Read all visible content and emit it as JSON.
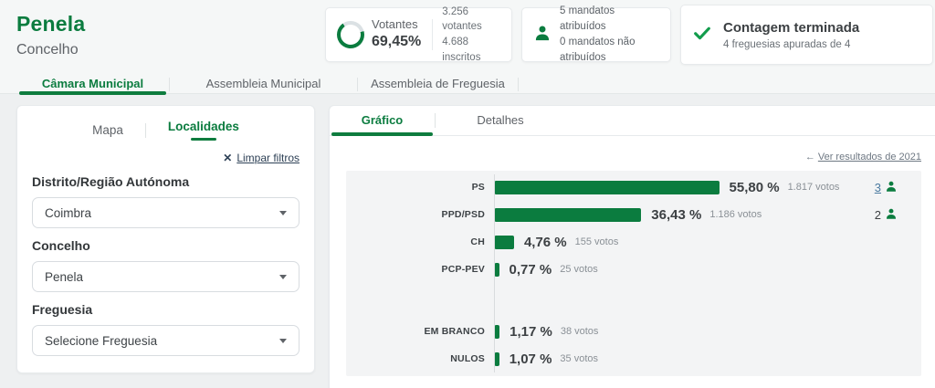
{
  "header": {
    "title": "Penela",
    "subtitle": "Concelho"
  },
  "summary_cards": {
    "votantes": {
      "label": "Votantes",
      "percent": "69,45%",
      "percent_value": 69.45,
      "line1": "3.256 votantes",
      "line2": "4.688 inscritos"
    },
    "mandatos": {
      "line1": "5 mandatos atribuídos",
      "line2": "0 mandatos não atribuídos"
    },
    "contagem": {
      "title": "Contagem terminada",
      "subtitle": "4 freguesias apuradas de 4"
    }
  },
  "main_tabs": [
    {
      "label": "Câmara Municipal",
      "active": true
    },
    {
      "label": "Assembleia Municipal",
      "active": false
    },
    {
      "label": "Assembleia de Freguesia",
      "active": false
    }
  ],
  "left_panel": {
    "tabs": [
      {
        "label": "Mapa",
        "active": false
      },
      {
        "label": "Localidades",
        "active": true
      }
    ],
    "clear_filters": "Limpar filtros",
    "filters": [
      {
        "label": "Distrito/Região Autónoma",
        "value": "Coimbra"
      },
      {
        "label": "Concelho",
        "value": "Penela"
      },
      {
        "label": "Freguesia",
        "value": "Selecione Freguesia"
      }
    ]
  },
  "results_panel": {
    "tabs": [
      {
        "label": "Gráfico",
        "active": true
      },
      {
        "label": "Detalhes",
        "active": false
      }
    ],
    "link_2021": "Ver resultados de 2021"
  },
  "chart_data": {
    "type": "bar",
    "orientation": "horizontal",
    "value_unit": "percent of votes",
    "x_max_implied": 60,
    "grid": false,
    "bar_color": "#0b7c3f",
    "rows": [
      {
        "party": "PS",
        "percent": "55,80 %",
        "percent_value": 55.8,
        "votes": "1.817 votos",
        "votes_value": 1817,
        "mandates": "3",
        "mandates_is_link": true
      },
      {
        "party": "PPD/PSD",
        "percent": "36,43 %",
        "percent_value": 36.43,
        "votes": "1.186 votos",
        "votes_value": 1186,
        "mandates": "2",
        "mandates_is_link": false
      },
      {
        "party": "CH",
        "percent": "4,76 %",
        "percent_value": 4.76,
        "votes": "155 votos",
        "votes_value": 155
      },
      {
        "party": "PCP-PEV",
        "percent": "0,77 %",
        "percent_value": 0.77,
        "votes": "25 votos",
        "votes_value": 25
      },
      {
        "party": "EM BRANCO",
        "percent": "1,17 %",
        "percent_value": 1.17,
        "votes": "38 votos",
        "votes_value": 38,
        "group": "other"
      },
      {
        "party": "NULOS",
        "percent": "1,07 %",
        "percent_value": 1.07,
        "votes": "35 votos",
        "votes_value": 35,
        "group": "other"
      }
    ]
  },
  "colors": {
    "brand_green": "#0b7c3f",
    "check_green": "#129c4c",
    "ring_track": "#dbe1e4",
    "link_navy": "#2e4156",
    "link_blue": "#4a7aa0",
    "link_gray": "#6e7883"
  }
}
